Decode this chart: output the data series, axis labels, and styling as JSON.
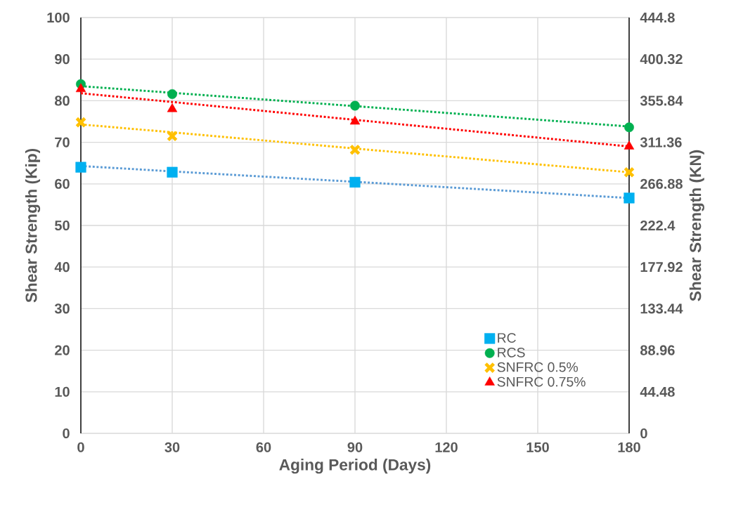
{
  "chart_data": {
    "type": "scatter",
    "xlabel": "Aging Period (Days)",
    "ylabel": "Shear Strength (Kip)",
    "y2label": "Shear Strength (KN)",
    "x": [
      0,
      30,
      90,
      180
    ],
    "xlim": [
      0,
      180
    ],
    "xticks": [
      0,
      30,
      60,
      90,
      120,
      150,
      180
    ],
    "ylim": [
      0,
      100
    ],
    "yticks": [
      0,
      10,
      20,
      30,
      40,
      50,
      60,
      70,
      80,
      90,
      100
    ],
    "y2lim": [
      0,
      444.8
    ],
    "y2ticks": [
      0,
      44.48,
      88.96,
      133.44,
      177.92,
      222.4,
      266.88,
      311.36,
      355.84,
      400.32,
      444.8
    ],
    "grid": true,
    "legend": "bottom right",
    "series": [
      {
        "name": "RC",
        "color": "#00b0f0",
        "marker": "square",
        "values": [
          64,
          62.8,
          60.4,
          56.6
        ]
      },
      {
        "name": "RCS",
        "color": "#00b050",
        "marker": "circle",
        "values": [
          84,
          81.6,
          78.8,
          73.6
        ]
      },
      {
        "name": "SNFRC 0.5%",
        "color": "#ffc000",
        "marker": "cross",
        "values": [
          74.8,
          71.5,
          68.2,
          62.8
        ]
      },
      {
        "name": "SNFRC 0.75%",
        "color": "#ff0000",
        "marker": "triangle",
        "values": [
          82.8,
          78,
          75,
          69
        ]
      },
      {
        "type": "line",
        "values": [
          64.3,
          63.0,
          60.5,
          56.6
        ],
        "color": "#5b9bd5",
        "line_style": "dotted",
        "marker": "none"
      },
      {
        "type": "line",
        "values": [
          83.5,
          81.9,
          78.7,
          73.8
        ],
        "color": "#00b050",
        "line_style": "dotted",
        "marker": "none"
      },
      {
        "type": "line",
        "values": [
          74.3,
          72.4,
          68.5,
          62.8
        ],
        "color": "#ffc000",
        "line_style": "dotted",
        "marker": "none"
      },
      {
        "type": "line",
        "values": [
          81.8,
          79.7,
          75.4,
          69.0
        ],
        "color": "#ff0000",
        "line_style": "dotted",
        "marker": "none"
      }
    ]
  }
}
